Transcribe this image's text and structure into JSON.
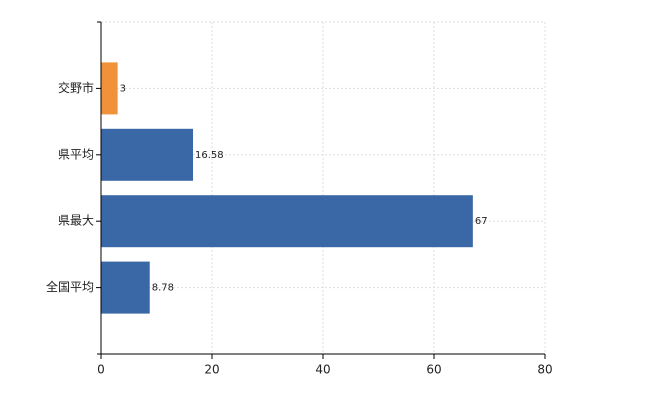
{
  "chart_data": {
    "type": "hbar",
    "categories": [
      "交野市",
      "県平均",
      "県最大",
      "全国平均"
    ],
    "values": [
      3,
      16.58,
      67,
      8.78
    ],
    "colors": [
      "#f0923a",
      "#3a68a6",
      "#3a68a6",
      "#3a68a6"
    ],
    "xlim": [
      0,
      80
    ],
    "xticks": [
      0,
      20,
      40,
      60,
      80
    ],
    "grid": true
  }
}
